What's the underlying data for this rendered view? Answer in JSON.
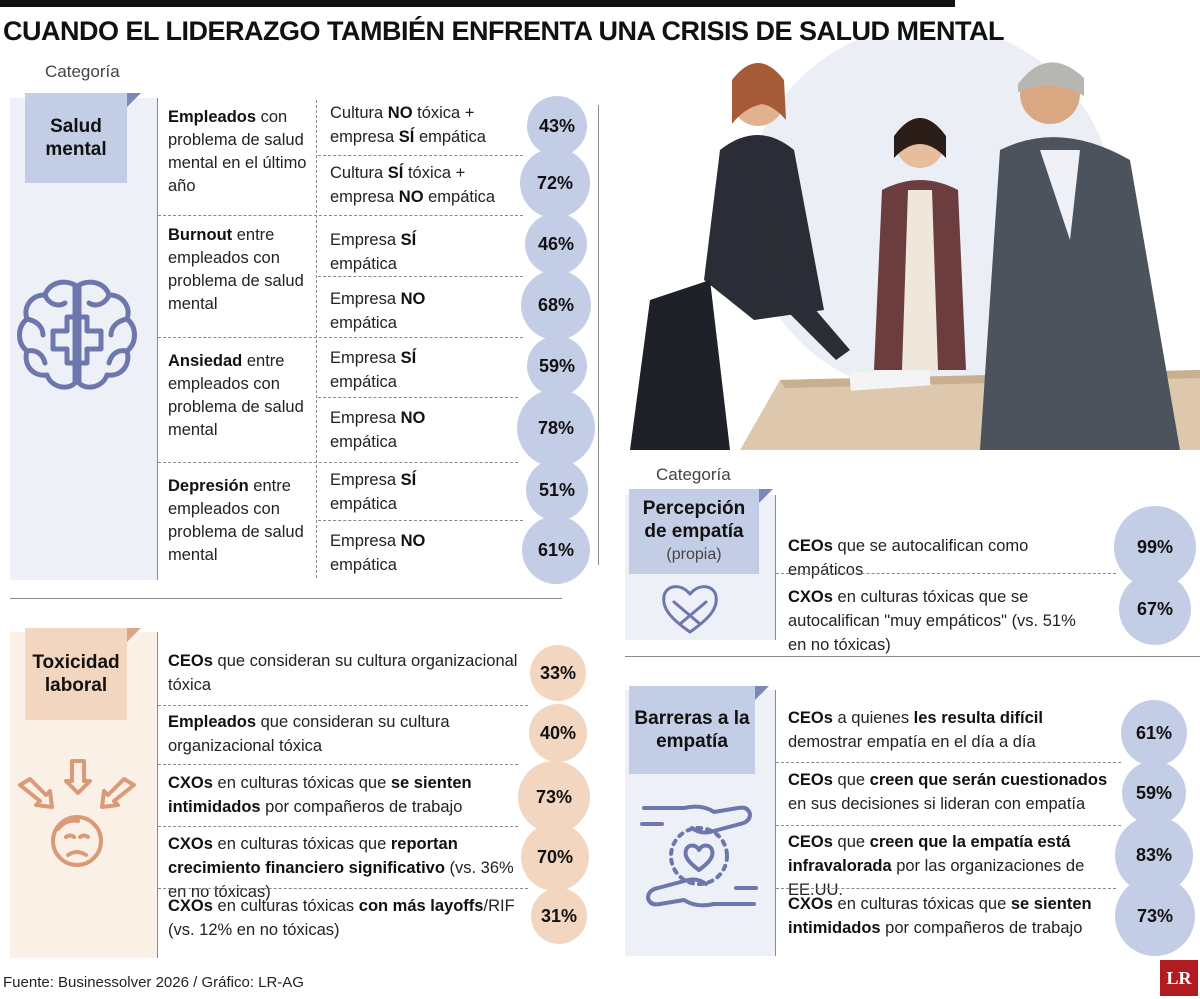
{
  "title": "CUANDO EL LIDERAZGO TAMBIÉN ENFRENTA UNA CRISIS DE SALUD MENTAL",
  "category_label": "Categoría",
  "salud_mental": {
    "tag": "Salud mental",
    "groups": [
      {
        "bold": "Empleados",
        "text": " con problema de salud mental en el último año",
        "rows": [
          {
            "parts": [
              "Cultura ",
              "NO",
              " tóxica + empresa ",
              "SÍ",
              " empática"
            ],
            "value": "43%"
          },
          {
            "parts": [
              "Cultura ",
              "SÍ",
              " tóxica + empresa ",
              "NO",
              " empática"
            ],
            "value": "72%"
          }
        ]
      },
      {
        "bold": "Burnout",
        "text": " entre empleados con problema de salud mental",
        "rows": [
          {
            "parts": [
              "Empresa ",
              "SÍ",
              " empática"
            ],
            "value": "46%"
          },
          {
            "parts": [
              "Empresa ",
              "NO",
              " empática"
            ],
            "value": "68%"
          }
        ]
      },
      {
        "bold": "Ansiedad",
        "text": " entre empleados con problema de salud mental",
        "rows": [
          {
            "parts": [
              "Empresa ",
              "SÍ",
              " empática"
            ],
            "value": "59%"
          },
          {
            "parts": [
              "Empresa ",
              "NO",
              " empática"
            ],
            "value": "78%"
          }
        ]
      },
      {
        "bold": "Depresión",
        "text": " entre empleados con problema de salud mental",
        "rows": [
          {
            "parts": [
              "Empresa ",
              "SÍ",
              " empática"
            ],
            "value": "51%"
          },
          {
            "parts": [
              "Empresa ",
              "NO",
              " empática"
            ],
            "value": "61%"
          }
        ]
      }
    ]
  },
  "toxicidad": {
    "tag": "Toxicidad laboral",
    "rows": [
      {
        "parts": [
          "CEOs",
          " que consideran su cultura organizacional tóxica"
        ],
        "value": "33%"
      },
      {
        "parts": [
          "Empleados",
          " que consideran su cultura organizacional tóxica"
        ],
        "value": "40%"
      },
      {
        "parts": [
          "CXOs",
          " en culturas tóxicas que ",
          "se sienten intimidados",
          " por compañeros de trabajo"
        ],
        "value": "73%"
      },
      {
        "parts": [
          "CXOs",
          " en culturas tóxicas que ",
          "reportan crecimiento financiero significativo",
          " (vs. 36% en no tóxicas)"
        ],
        "value": "70%"
      },
      {
        "parts": [
          "CXOs",
          " en culturas tóxicas ",
          "con más layoffs",
          "/RIF (vs. 12% en no tóxicas)"
        ],
        "value": "31%"
      }
    ]
  },
  "percepcion": {
    "tag": "Percepción de empatía",
    "tag_sub": "(propia)",
    "rows": [
      {
        "parts": [
          "CEOs",
          " que se autocalifican como empáticos"
        ],
        "value": "99%"
      },
      {
        "parts": [
          "CXOs",
          " en culturas tóxicas que se autocalifican \"muy empáticos\" (vs. 51% en no tóxicas)"
        ],
        "value": "67%"
      }
    ]
  },
  "barreras": {
    "tag": "Barreras a la empatía",
    "rows": [
      {
        "parts": [
          "CEOs",
          " a quienes ",
          "les resulta difícil",
          " demostrar empatía en el día a día"
        ],
        "value": "61%"
      },
      {
        "parts": [
          "CEOs",
          " que ",
          "creen que serán cuestionados",
          " en sus decisiones si lideran con empatía"
        ],
        "value": "59%"
      },
      {
        "parts": [
          "CEOs",
          " que ",
          "creen que la empatía está infravalorada",
          " por las organizaciones de EE.UU."
        ],
        "value": "83%"
      },
      {
        "parts": [
          "CXOs",
          " en culturas tóxicas que ",
          "se sienten intimidados",
          " por compañeros de trabajo"
        ],
        "value": "73%"
      }
    ]
  },
  "source": "Fuente: Businessolver 2026 / Gráfico: LR-AG",
  "logo_text": "LR",
  "colors": {
    "blue": "#c4cde6",
    "peach": "#f2d6c0",
    "icon_blue": "#6d77ad",
    "icon_peach": "#d99a78"
  },
  "icons": [
    "brain-icon",
    "bullying-icon",
    "heart-hands-icon",
    "care-hands-icon"
  ]
}
